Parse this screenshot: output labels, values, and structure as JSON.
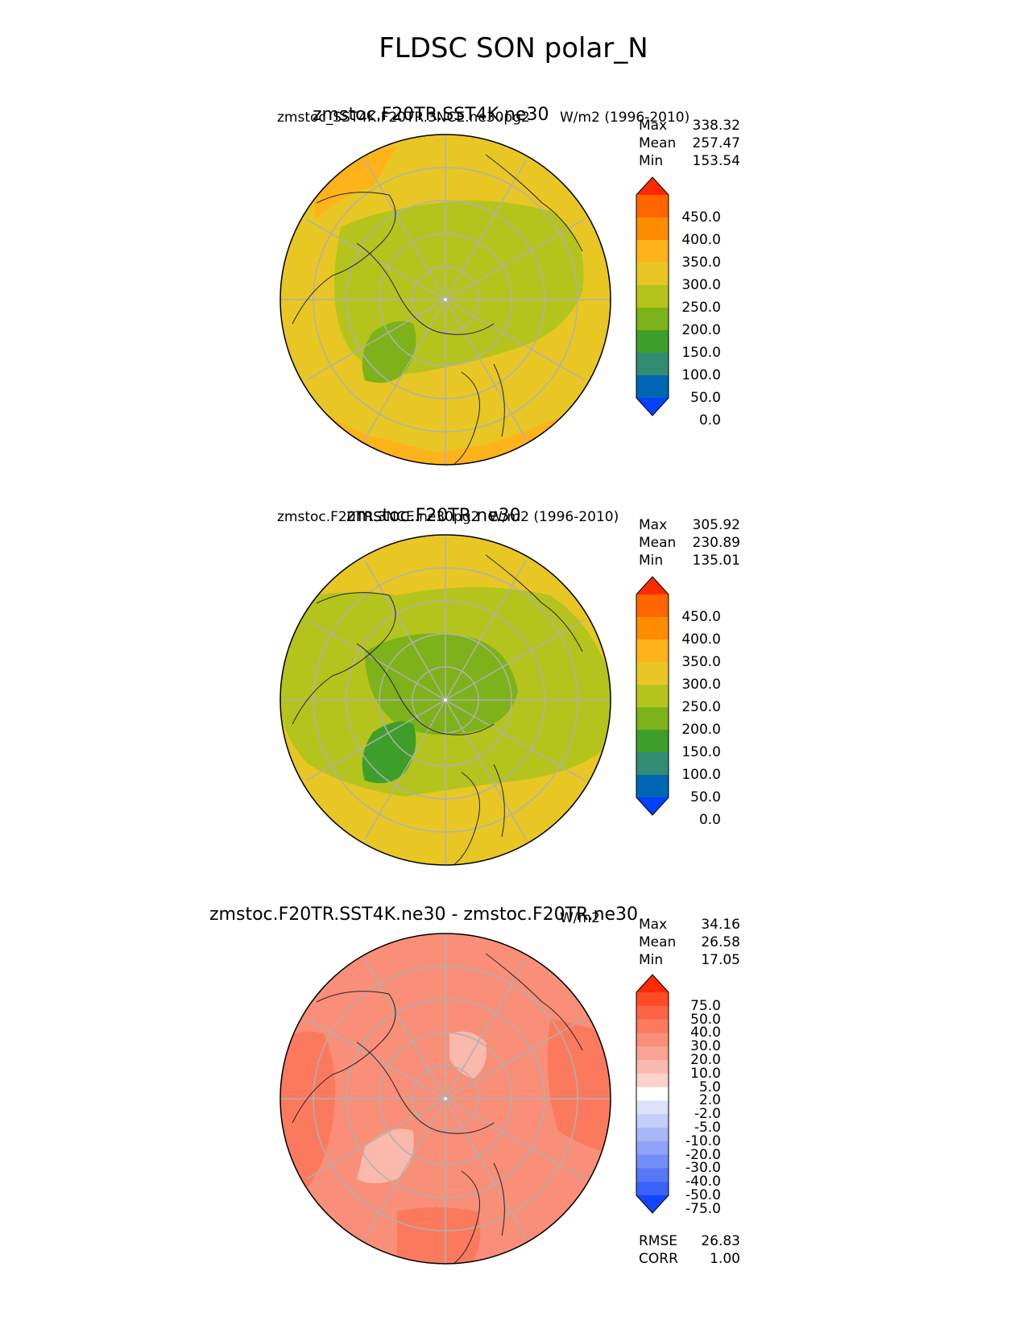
{
  "title": "FLDSC SON polar_N",
  "panels": [
    {
      "title": "zmstoc.F20TR.SST4K.ne30",
      "subtitle_left": "zmstoc_SST4K.F20TR.3NCE.ne30pg2",
      "subtitle_right": "W/m2 (1996-2010)",
      "stats": {
        "max_label": "Max",
        "max": "338.32",
        "mean_label": "Mean",
        "mean": "257.47",
        "min_label": "Min",
        "min": "153.54"
      },
      "colorbar": {
        "labels": [
          "450.0",
          "400.0",
          "350.0",
          "300.0",
          "250.0",
          "200.0",
          "150.0",
          "100.0",
          "50.0",
          "0.0"
        ],
        "colors": [
          "#ff2a00",
          "#ff6600",
          "#ff8c00",
          "#ffb31a",
          "#e8c724",
          "#b5c41d",
          "#7db21a",
          "#3e9e2a",
          "#318c72",
          "#0066b3",
          "#0040ff"
        ]
      }
    },
    {
      "title": "zmstoc.F20TR.ne30",
      "subtitle_left": "zmstoc.F20TR.3NCE.ne30pg2",
      "subtitle_right": "W/m2 (1996-2010)",
      "stats": {
        "max_label": "Max",
        "max": "305.92",
        "mean_label": "Mean",
        "mean": "230.89",
        "min_label": "Min",
        "min": "135.01"
      },
      "colorbar": {
        "labels": [
          "450.0",
          "400.0",
          "350.0",
          "300.0",
          "250.0",
          "200.0",
          "150.0",
          "100.0",
          "50.0",
          "0.0"
        ],
        "colors": [
          "#ff2a00",
          "#ff6600",
          "#ff8c00",
          "#ffb31a",
          "#e8c724",
          "#b5c41d",
          "#7db21a",
          "#3e9e2a",
          "#318c72",
          "#0066b3",
          "#0040ff"
        ]
      }
    },
    {
      "title": "zmstoc.F20TR.SST4K.ne30 - zmstoc.F20TR.ne30",
      "units": "W/m2",
      "stats": {
        "max_label": "Max",
        "max": "34.16",
        "mean_label": "Mean",
        "mean": "26.58",
        "min_label": "Min",
        "min": "17.05"
      },
      "colorbar": {
        "labels": [
          "75.0",
          "50.0",
          "40.0",
          "30.0",
          "20.0",
          "10.0",
          "5.0",
          "2.0",
          "-2.0",
          "-5.0",
          "-10.0",
          "-20.0",
          "-30.0",
          "-40.0",
          "-50.0",
          "-75.0"
        ],
        "colors": [
          "#ff2a00",
          "#ff4a28",
          "#fc6446",
          "#fb7a5e",
          "#f98f78",
          "#f8a393",
          "#f9b9ad",
          "#fbd2cc",
          "#ffffff",
          "#dde2fb",
          "#c5cdfa",
          "#a9b7f9",
          "#8fa2f8",
          "#748ef7",
          "#5877f7",
          "#3a62f8",
          "#1446ff"
        ]
      },
      "rmse_label": "RMSE",
      "rmse": "26.83",
      "corr_label": "CORR",
      "corr": "1.00"
    }
  ]
}
